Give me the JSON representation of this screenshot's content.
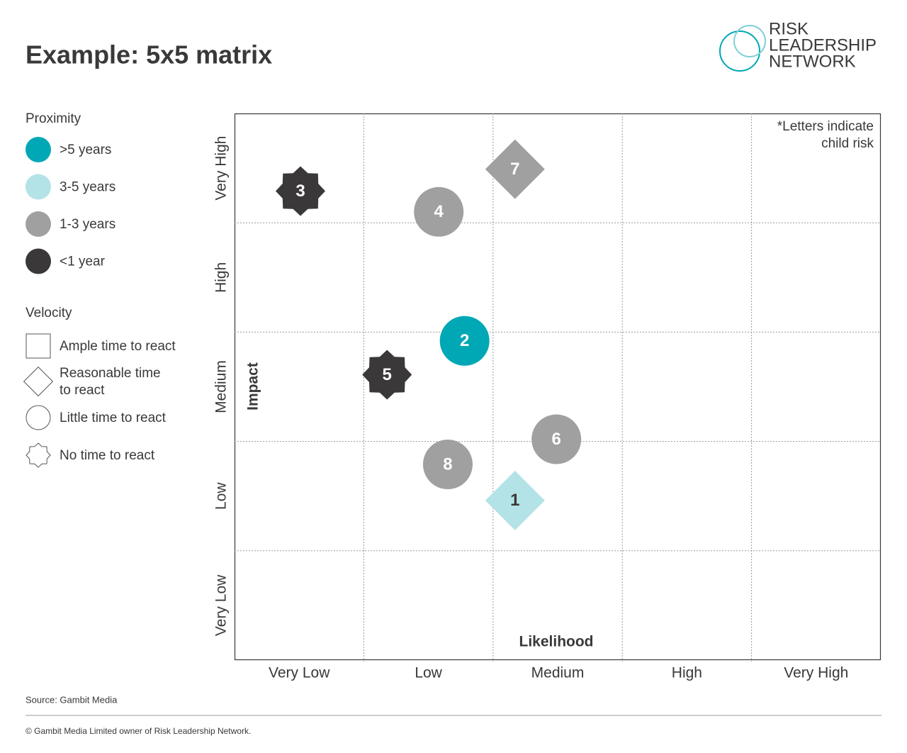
{
  "chart_data": {
    "type": "scatter",
    "title": "Example: 5x5 matrix",
    "logo": [
      "RISK",
      "LEADERSHIP",
      "NETWORK"
    ],
    "note": [
      "*Letters indicate",
      "child risk"
    ],
    "x_label": "Likelihood",
    "y_label": "Impact",
    "xlim": [
      0,
      5
    ],
    "ylim": [
      0,
      5
    ],
    "xticks": [
      {
        "value": 0.5,
        "label": "Very Low"
      },
      {
        "value": 1.5,
        "label": "Low"
      },
      {
        "value": 2.5,
        "label": "Medium"
      },
      {
        "value": 3.5,
        "label": "High"
      },
      {
        "value": 4.5,
        "label": "Very High"
      }
    ],
    "yticks": [
      {
        "value": 0.5,
        "label": "Very Low"
      },
      {
        "value": 1.5,
        "label": "Low"
      },
      {
        "value": 2.5,
        "label": "Medium"
      },
      {
        "value": 3.5,
        "label": "High"
      },
      {
        "value": 4.5,
        "label": "Very High"
      }
    ],
    "grid": true,
    "proximity_title": "Proximity",
    "proximity_legend": [
      {
        "label": ">5 years",
        "color": "#00a8b5"
      },
      {
        "label": "3-5 years",
        "color": "#b3e3e7"
      },
      {
        "label": "1-3 years",
        "color": "#a0a0a0"
      },
      {
        "label": "<1 year",
        "color": "#3a3838"
      }
    ],
    "velocity_title": "Velocity",
    "velocity_legend": [
      {
        "label": [
          "Ample time to react"
        ],
        "shape": "square"
      },
      {
        "label": [
          "Reasonable time",
          "to react"
        ],
        "shape": "diamond"
      },
      {
        "label": [
          "Little time to react"
        ],
        "shape": "circle"
      },
      {
        "label": [
          "No time to react"
        ],
        "shape": "star"
      }
    ],
    "points": [
      {
        "label": "3",
        "x": 0.51,
        "y": 4.29,
        "proximity": "<1 year",
        "velocity": "star"
      },
      {
        "label": "4",
        "x": 1.58,
        "y": 4.1,
        "proximity": "1-3 years",
        "velocity": "circle"
      },
      {
        "label": "7",
        "x": 2.17,
        "y": 4.49,
        "proximity": "1-3 years",
        "velocity": "diamond"
      },
      {
        "label": "2",
        "x": 1.78,
        "y": 2.92,
        "proximity": ">5 years",
        "velocity": "circle"
      },
      {
        "label": "5",
        "x": 1.18,
        "y": 2.61,
        "proximity": "<1 year",
        "velocity": "star"
      },
      {
        "label": "6",
        "x": 2.49,
        "y": 2.02,
        "proximity": "1-3 years",
        "velocity": "circle"
      },
      {
        "label": "8",
        "x": 1.65,
        "y": 1.79,
        "proximity": "1-3 years",
        "velocity": "circle"
      },
      {
        "label": "1",
        "x": 2.17,
        "y": 1.46,
        "proximity": "3-5 years",
        "velocity": "diamond"
      }
    ],
    "source": "Source: Gambit Media",
    "footer": "© Gambit Media Limited owner of Risk Leadership Network."
  }
}
